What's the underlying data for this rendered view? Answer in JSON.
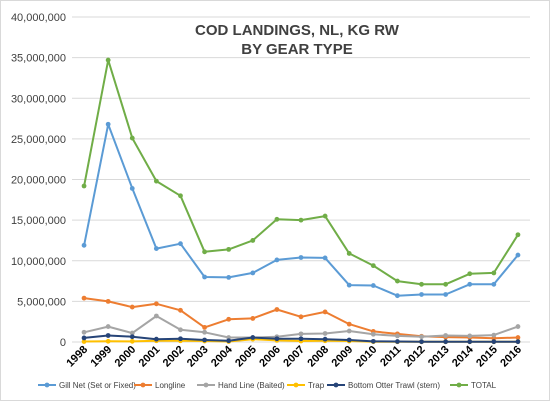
{
  "chart_data": {
    "type": "line",
    "title_line1": "COD LANDINGS, NL, KG RW",
    "title_line2": "BY GEAR TYPE",
    "xlabel": "",
    "ylabel": "",
    "ylim": [
      0,
      40000000
    ],
    "yticks": [
      0,
      5000000,
      10000000,
      15000000,
      20000000,
      25000000,
      30000000,
      35000000,
      40000000
    ],
    "ytick_labels": [
      "0",
      "5,000,000",
      "10,000,000",
      "15,000,000",
      "20,000,000",
      "25,000,000",
      "30,000,000",
      "35,000,000",
      "40,000,000"
    ],
    "grid": true,
    "legend_position": "bottom",
    "categories": [
      "1998",
      "1999",
      "2000",
      "2001",
      "2002",
      "2003",
      "2004",
      "2005",
      "2006",
      "2007",
      "2008",
      "2009",
      "2010",
      "2011",
      "2012",
      "2013",
      "2014",
      "2015",
      "2016"
    ],
    "series": [
      {
        "name": "Gill Net (Set or Fixed)",
        "color": "#5b9bd5",
        "values": [
          11900000,
          26800000,
          18900000,
          11500000,
          12100000,
          8000000,
          7950000,
          8500000,
          10100000,
          10400000,
          10350000,
          7000000,
          6950000,
          5700000,
          5850000,
          5850000,
          7100000,
          7100000,
          10700000
        ]
      },
      {
        "name": "Longline",
        "color": "#ed7d31",
        "values": [
          5400000,
          5000000,
          4300000,
          4700000,
          3900000,
          1800000,
          2800000,
          2900000,
          4000000,
          3100000,
          3700000,
          2200000,
          1300000,
          1000000,
          700000,
          600000,
          550000,
          450000,
          550000
        ]
      },
      {
        "name": "Hand Line (Baited)",
        "color": "#a5a5a5",
        "values": [
          1200000,
          1900000,
          1100000,
          3200000,
          1500000,
          1200000,
          550000,
          550000,
          650000,
          1000000,
          1050000,
          1350000,
          950000,
          750000,
          650000,
          800000,
          750000,
          850000,
          1900000
        ]
      },
      {
        "name": "Trap",
        "color": "#ffc000",
        "values": [
          60000,
          90000,
          80000,
          150000,
          150000,
          120000,
          60000,
          350000,
          200000,
          120000,
          150000,
          120000,
          40000,
          30000,
          30000,
          30000,
          30000,
          30000,
          40000
        ]
      },
      {
        "name": "Bottom Otter Trawl (stern)",
        "color": "#264478",
        "values": [
          500000,
          800000,
          650000,
          350000,
          400000,
          250000,
          150000,
          550000,
          400000,
          400000,
          350000,
          250000,
          80000,
          60000,
          40000,
          40000,
          40000,
          40000,
          40000
        ]
      },
      {
        "name": "TOTAL",
        "color": "#70ad47",
        "values": [
          19200000,
          34700000,
          25100000,
          19800000,
          18000000,
          11100000,
          11400000,
          12500000,
          15100000,
          15000000,
          15500000,
          10900000,
          9400000,
          7500000,
          7100000,
          7100000,
          8400000,
          8500000,
          13200000
        ]
      }
    ]
  }
}
